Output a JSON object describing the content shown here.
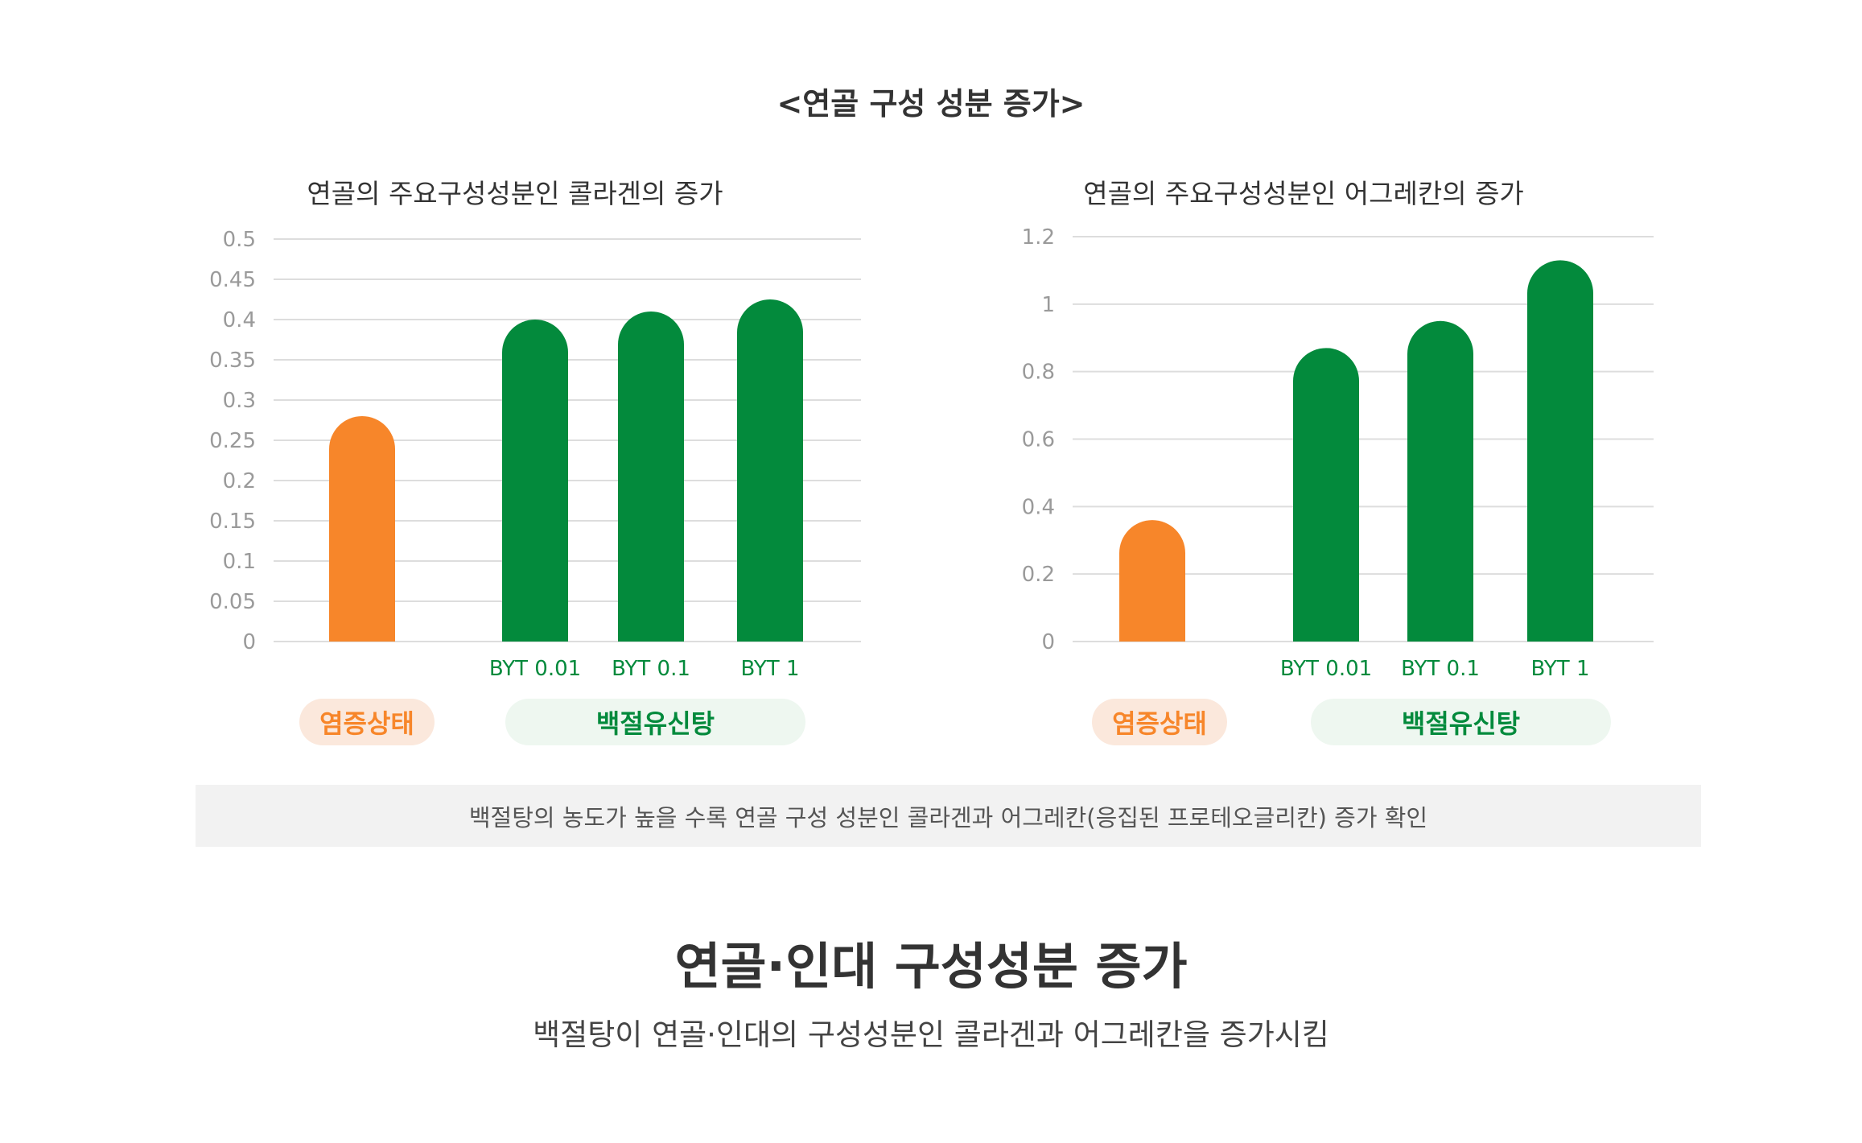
{
  "section_title": "<연골 구성 성분 증가>",
  "colors": {
    "inflammation": "#f7862a",
    "treatment": "#038a3c",
    "grid": "#dddddd",
    "tick": "#9a9a9a"
  },
  "legend": {
    "inflammation_label": "염증상태",
    "treatment_label": "백절유신탕"
  },
  "note": "백절탕의 농도가 높을 수록 연골 구성 성분인 콜라겐과 어그레칸(응집된 프로테오글리칸) 증가 확인",
  "heading": "연골·인대 구성성분 증가",
  "subheading": "백절탕이 연골·인대의 구성성분인 콜라겐과 어그레칸을 증가시킴",
  "chart_data": [
    {
      "type": "bar",
      "title": "연골의 주요구성성분인 콜라겐의 증가",
      "categories": [
        "",
        "BYT 0.01",
        "BYT 0.1",
        "BYT 1"
      ],
      "values": [
        0.28,
        0.4,
        0.41,
        0.425
      ],
      "bar_colors": [
        "#f7862a",
        "#038a3c",
        "#038a3c",
        "#038a3c"
      ],
      "ylim": [
        0,
        0.5
      ],
      "yticks": [
        0,
        0.05,
        0.1,
        0.15,
        0.2,
        0.25,
        0.3,
        0.35,
        0.4,
        0.45,
        0.5
      ],
      "ytick_labels": [
        "0",
        "0.05",
        "0.1",
        "0.15",
        "0.2",
        "0.25",
        "0.3",
        "0.35",
        "0.4",
        "0.45",
        "0.5"
      ],
      "grid": true,
      "legend": "bottom"
    },
    {
      "type": "bar",
      "title": "연골의 주요구성성분인 어그레칸의 증가",
      "categories": [
        "",
        "BYT 0.01",
        "BYT 0.1",
        "BYT 1"
      ],
      "values": [
        0.36,
        0.87,
        0.95,
        1.13
      ],
      "bar_colors": [
        "#f7862a",
        "#038a3c",
        "#038a3c",
        "#038a3c"
      ],
      "ylim": [
        0,
        1.2
      ],
      "yticks": [
        0,
        0.2,
        0.4,
        0.6,
        0.8,
        1,
        1.2
      ],
      "ytick_labels": [
        "0",
        "0.2",
        "0.4",
        "0.6",
        "0.8",
        "1",
        "1.2"
      ],
      "grid": true,
      "legend": "bottom"
    }
  ]
}
